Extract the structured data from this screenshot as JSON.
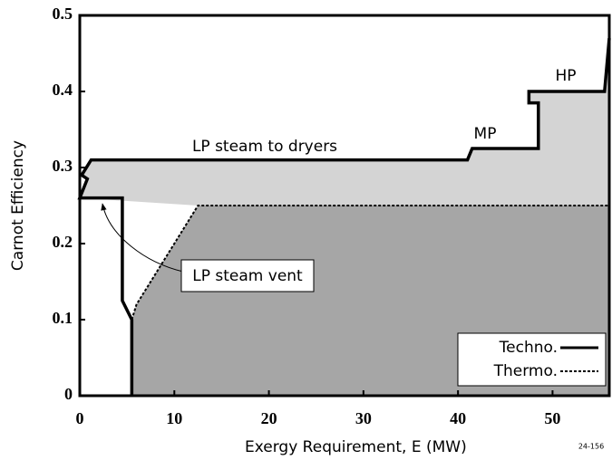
{
  "chart_data": {
    "type": "line",
    "xlabel": "Exergy Requirement, E (MW)",
    "ylabel": "Carnot Efficiency",
    "xlim": [
      0,
      56
    ],
    "ylim": [
      0,
      0.5
    ],
    "xticks": [
      0,
      10,
      20,
      30,
      40,
      50
    ],
    "yticks": [
      0,
      0.1,
      0.2,
      0.3,
      0.4,
      0.5
    ],
    "grid": false,
    "legend": "lower right",
    "series": [
      {
        "name": "Techno.",
        "color": "#000000",
        "style": "solid",
        "x": [
          5.5,
          5.5,
          4.5,
          4.5,
          0,
          0.8,
          0.2,
          1.2,
          41,
          41.5,
          48.5,
          48.5,
          47.5,
          47.5,
          55.5,
          56
        ],
        "values": [
          0,
          0.1,
          0.125,
          0.26,
          0.26,
          0.285,
          0.29,
          0.31,
          0.31,
          0.325,
          0.325,
          0.385,
          0.385,
          0.4,
          0.4,
          0.47
        ]
      },
      {
        "name": "Thermo.",
        "color": "#000000",
        "style": "dashed",
        "x": [
          5.5,
          6,
          12.5,
          56
        ],
        "values": [
          0.1,
          0.12,
          0.25,
          0.25
        ]
      }
    ],
    "annotations": [
      "LP steam to dryers",
      "MP",
      "HP",
      "LP steam vent"
    ],
    "figure_id": "24-156"
  }
}
